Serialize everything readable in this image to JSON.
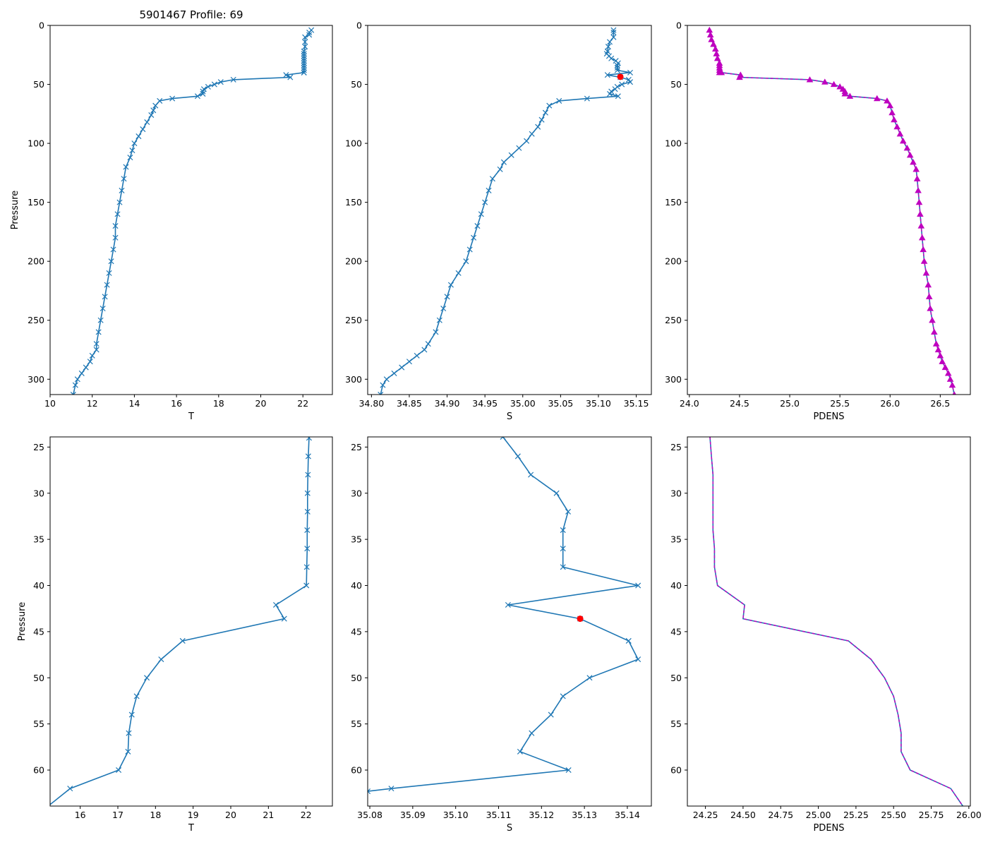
{
  "title": "5901467 Profile: 69",
  "colors": {
    "line": "#1f77b4",
    "density": "#bf00bf",
    "flag": "#ff0000",
    "axis": "#000000"
  },
  "chart_data": [
    {
      "id": "temp-full",
      "type": "line",
      "marker": "x",
      "xlabel": "T",
      "ylabel": "Pressure",
      "xlim": [
        10,
        23.4
      ],
      "ylim": [
        313,
        0
      ],
      "y_inverted": true,
      "xticks": [
        10,
        12,
        14,
        16,
        18,
        20,
        22
      ],
      "xtick_labels": [
        "10",
        "12",
        "14",
        "16",
        "18",
        "20",
        "22"
      ],
      "yticks": [
        0,
        50,
        100,
        150,
        200,
        250,
        300
      ],
      "ytick_labels": [
        "0",
        "50",
        "100",
        "150",
        "200",
        "250",
        "300"
      ],
      "series": [
        {
          "name": "T",
          "x": [
            22.4,
            22.3,
            22.3,
            22.1,
            22.1,
            22.1,
            22.05,
            22.05,
            22.05,
            22.05,
            22.05,
            22.05,
            22.05,
            22.05,
            22.05,
            22.05,
            22.05,
            21.2,
            21.4,
            18.7,
            18.1,
            17.8,
            17.5,
            17.3,
            17.25,
            17.25,
            17.0,
            15.8,
            15.2,
            15.0,
            14.9,
            14.8,
            14.6,
            14.4,
            14.2,
            14.0,
            13.9,
            13.8,
            13.6,
            13.5,
            13.4,
            13.3,
            13.2,
            13.1,
            13.1,
            13.0,
            12.9,
            12.8,
            12.7,
            12.6,
            12.5,
            12.4,
            12.3,
            12.2,
            12.2,
            12.0,
            11.9,
            11.7,
            11.5,
            11.3,
            11.2,
            11.1
          ],
          "y": [
            4,
            6,
            8,
            10,
            14,
            18,
            22,
            24,
            26,
            28,
            30,
            32,
            34,
            36,
            38,
            40,
            40,
            42,
            44,
            46,
            48,
            50,
            52,
            54,
            56,
            58,
            60,
            62,
            64,
            68,
            72,
            76,
            82,
            88,
            94,
            100,
            106,
            112,
            120,
            130,
            140,
            150,
            160,
            170,
            180,
            190,
            200,
            210,
            220,
            230,
            240,
            250,
            260,
            270,
            275,
            280,
            285,
            290,
            295,
            300,
            305,
            313
          ]
        }
      ]
    },
    {
      "id": "sal-full",
      "type": "line",
      "marker": "x",
      "xlabel": "S",
      "ylabel": "",
      "xlim": [
        34.795,
        35.17
      ],
      "ylim": [
        313,
        0
      ],
      "y_inverted": true,
      "xticks": [
        34.8,
        34.85,
        34.9,
        34.95,
        35.0,
        35.05,
        35.1,
        35.15
      ],
      "xtick_labels": [
        "34.80",
        "34.85",
        "34.90",
        "34.95",
        "35.00",
        "35.05",
        "35.10",
        "35.15"
      ],
      "yticks": [
        0,
        50,
        100,
        150,
        200,
        250,
        300
      ],
      "ytick_labels": [
        "0",
        "50",
        "100",
        "150",
        "200",
        "250",
        "300"
      ],
      "series": [
        {
          "name": "S",
          "x": [
            35.12,
            35.12,
            35.12,
            35.115,
            35.113,
            35.112,
            35.111,
            35.114,
            35.117,
            35.123,
            35.126,
            35.125,
            35.125,
            35.125,
            35.142,
            35.112,
            35.129,
            35.14,
            35.142,
            35.131,
            35.125,
            35.122,
            35.117,
            35.115,
            35.126,
            35.085,
            35.048,
            35.035,
            35.03,
            35.025,
            35.02,
            35.012,
            35.005,
            34.995,
            34.985,
            34.975,
            34.97,
            34.96,
            34.955,
            34.95,
            34.945,
            34.94,
            34.935,
            34.93,
            34.925,
            34.915,
            34.905,
            34.9,
            34.895,
            34.89,
            34.885,
            34.875,
            34.87,
            34.86,
            34.85,
            34.84,
            34.83,
            34.82,
            34.815,
            34.812
          ],
          "y": [
            4,
            6,
            10,
            14,
            18,
            22,
            24,
            26,
            28,
            30,
            32,
            34,
            36,
            38,
            40,
            42,
            44,
            46,
            48,
            50,
            52,
            54,
            56,
            58,
            60,
            62,
            64,
            68,
            74,
            80,
            86,
            92,
            98,
            104,
            110,
            116,
            122,
            130,
            140,
            150,
            160,
            170,
            180,
            190,
            200,
            210,
            220,
            230,
            240,
            250,
            260,
            270,
            275,
            280,
            285,
            290,
            295,
            300,
            305,
            313
          ]
        }
      ],
      "flag_points": [
        {
          "x": 35.129,
          "y": 43.6
        }
      ]
    },
    {
      "id": "dens-full",
      "type": "line",
      "marker": "triangle",
      "xlabel": "PDENS",
      "ylabel": "",
      "xlim": [
        23.98,
        26.8
      ],
      "ylim": [
        313,
        0
      ],
      "y_inverted": true,
      "xticks": [
        24.0,
        24.5,
        25.0,
        25.5,
        26.0,
        26.5
      ],
      "xtick_labels": [
        "24.0",
        "24.5",
        "25.0",
        "25.5",
        "26.0",
        "26.5"
      ],
      "yticks": [
        0,
        50,
        100,
        150,
        200,
        250,
        300
      ],
      "ytick_labels": [
        "0",
        "50",
        "100",
        "150",
        "200",
        "250",
        "300"
      ],
      "series": [
        {
          "name": "PDENS",
          "x": [
            24.2,
            24.21,
            24.22,
            24.24,
            24.26,
            24.27,
            24.28,
            24.3,
            24.3,
            24.3,
            24.3,
            24.3,
            24.32,
            24.51,
            24.5,
            25.2,
            25.35,
            25.44,
            25.5,
            25.53,
            25.55,
            25.55,
            25.6,
            25.87,
            25.97,
            26.0,
            26.02,
            26.04,
            26.07,
            26.1,
            26.13,
            26.17,
            26.2,
            26.23,
            26.26,
            26.27,
            26.28,
            26.29,
            26.3,
            26.31,
            26.32,
            26.33,
            26.34,
            26.36,
            26.38,
            26.39,
            26.4,
            26.42,
            26.44,
            26.46,
            26.48,
            26.5,
            26.52,
            26.55,
            26.58,
            26.6,
            26.62,
            26.64
          ],
          "y": [
            4,
            8,
            12,
            16,
            20,
            24,
            28,
            32,
            34,
            36,
            38,
            40,
            40,
            42,
            44,
            46,
            48,
            50,
            52,
            54,
            56,
            58,
            60,
            62,
            64,
            68,
            74,
            80,
            86,
            92,
            98,
            104,
            110,
            116,
            122,
            130,
            140,
            150,
            160,
            170,
            180,
            190,
            200,
            210,
            220,
            230,
            240,
            250,
            260,
            270,
            275,
            280,
            285,
            290,
            295,
            300,
            305,
            313
          ]
        }
      ]
    },
    {
      "id": "temp-zoom",
      "type": "line",
      "marker": "x",
      "xlabel": "T",
      "ylabel": "Pressure",
      "xlim": [
        15.2,
        22.7
      ],
      "ylim": [
        63.9,
        23.9
      ],
      "y_inverted": true,
      "xticks": [
        16,
        17,
        18,
        19,
        20,
        21,
        22
      ],
      "xtick_labels": [
        "16",
        "17",
        "18",
        "19",
        "20",
        "21",
        "22"
      ],
      "yticks": [
        25,
        30,
        35,
        40,
        45,
        50,
        55,
        60
      ],
      "ytick_labels": [
        "25",
        "30",
        "35",
        "40",
        "45",
        "50",
        "55",
        "60"
      ],
      "series": [
        {
          "name": "T",
          "x": [
            22.08,
            22.06,
            22.05,
            22.04,
            22.04,
            22.03,
            22.03,
            22.02,
            22.01,
            21.2,
            21.42,
            18.72,
            18.15,
            17.77,
            17.5,
            17.37,
            17.29,
            17.27,
            17.02,
            15.73,
            15.15
          ],
          "y": [
            24,
            26,
            28,
            30,
            32,
            34,
            36,
            38,
            40,
            42.1,
            43.6,
            46,
            48,
            50,
            52,
            54,
            56,
            58,
            60,
            62,
            63.9
          ]
        }
      ]
    },
    {
      "id": "sal-zoom",
      "type": "line",
      "marker": "x",
      "xlabel": "S",
      "ylabel": "",
      "xlim": [
        35.0795,
        35.1456
      ],
      "ylim": [
        63.9,
        23.9
      ],
      "y_inverted": true,
      "xticks": [
        35.08,
        35.09,
        35.1,
        35.11,
        35.12,
        35.13,
        35.14
      ],
      "xtick_labels": [
        "35.08",
        "35.09",
        "35.10",
        "35.11",
        "35.12",
        "35.13",
        "35.14"
      ],
      "yticks": [
        25,
        30,
        35,
        40,
        45,
        50,
        55,
        60
      ],
      "ytick_labels": [
        "25",
        "30",
        "35",
        "40",
        "45",
        "50",
        "55",
        "60"
      ],
      "series": [
        {
          "name": "S",
          "x": [
            35.111,
            35.1145,
            35.1175,
            35.1235,
            35.1262,
            35.125,
            35.125,
            35.125,
            35.1425,
            35.1122,
            35.129,
            35.1403,
            35.1425,
            35.1312,
            35.125,
            35.1222,
            35.1177,
            35.115,
            35.1263,
            35.085,
            35.0795
          ],
          "y": [
            23.9,
            26,
            28,
            30,
            32,
            34,
            36,
            38,
            40,
            42.1,
            43.6,
            46,
            48,
            50,
            52,
            54,
            56,
            58,
            60,
            62,
            62.3
          ]
        }
      ],
      "flag_points": [
        {
          "x": 35.129,
          "y": 43.6
        }
      ]
    },
    {
      "id": "dens-zoom",
      "type": "line",
      "marker": "none",
      "xlabel": "PDENS",
      "ylabel": "",
      "xlim": [
        24.13,
        26.01
      ],
      "ylim": [
        63.9,
        23.9
      ],
      "y_inverted": true,
      "xticks": [
        24.25,
        24.5,
        24.75,
        25.0,
        25.25,
        25.5,
        25.75,
        26.0
      ],
      "xtick_labels": [
        "24.25",
        "24.50",
        "24.75",
        "25.00",
        "25.25",
        "25.50",
        "25.75",
        "26.00"
      ],
      "yticks": [
        25,
        30,
        35,
        40,
        45,
        50,
        55,
        60
      ],
      "ytick_labels": [
        "25",
        "30",
        "35",
        "40",
        "45",
        "50",
        "55",
        "60"
      ],
      "series": [
        {
          "name": "PDENS",
          "x": [
            24.28,
            24.29,
            24.3,
            24.3,
            24.3,
            24.3,
            24.31,
            24.31,
            24.33,
            24.51,
            24.5,
            25.2,
            25.35,
            25.44,
            25.5,
            25.53,
            25.55,
            25.55,
            25.61,
            25.88,
            25.96
          ],
          "y": [
            23.9,
            26,
            28,
            30,
            32,
            34,
            36,
            38,
            40,
            42.1,
            43.6,
            46,
            48,
            50,
            52,
            54,
            56,
            58,
            60,
            62,
            63.9
          ]
        }
      ]
    }
  ]
}
